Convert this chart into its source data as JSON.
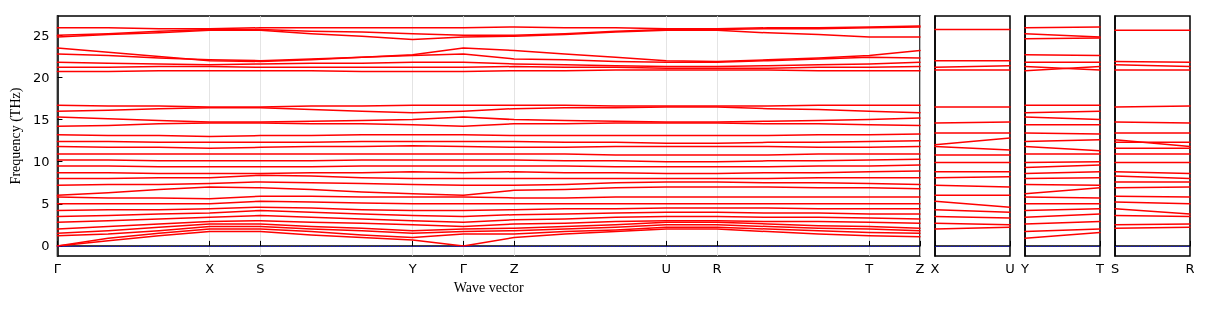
{
  "chart_data": [
    {
      "type": "line",
      "ylabel": "Frequency (THz)",
      "xlabel": "Wave vector",
      "categories": [
        "Γ",
        null,
        null,
        "X",
        "S",
        null,
        null,
        "Y",
        "Γ",
        "Z",
        null,
        null,
        "U",
        "R",
        null,
        null,
        "T",
        "Z"
      ],
      "ylim": [
        -1.2,
        27.3
      ],
      "yticks": [
        0,
        5,
        10,
        15,
        20,
        25
      ],
      "grid": "x",
      "line_style": "solid",
      "ref_lines": [
        {
          "axis": "y",
          "value": 0,
          "color": "#0000ff",
          "line_style": "dotted"
        }
      ],
      "series": [
        {
          "color": "#ff0000",
          "values": [
            0,
            0.6,
            1.2,
            1.7,
            1.7,
            1.3,
            1.0,
            0.7,
            0,
            1.0,
            1.4,
            1.7,
            2.0,
            2.0,
            1.7,
            1.4,
            1.2,
            1.1
          ]
        },
        {
          "color": "#ff0000",
          "values": [
            0,
            0.9,
            1.5,
            2.0,
            2.0,
            1.7,
            1.3,
            1.0,
            1.4,
            1.4,
            1.7,
            1.9,
            2.2,
            2.2,
            2.0,
            1.8,
            1.6,
            1.5
          ]
        },
        {
          "color": "#ff0000",
          "values": [
            1.2,
            1.4,
            1.8,
            2.3,
            2.3,
            2.0,
            1.8,
            1.5,
            1.7,
            1.8,
            2.0,
            2.2,
            2.5,
            2.5,
            2.3,
            2.1,
            2.0,
            1.8
          ]
        },
        {
          "color": "#ff0000",
          "values": [
            1.5,
            1.8,
            2.2,
            2.6,
            2.6,
            2.3,
            2.1,
            1.8,
            2.0,
            2.1,
            2.3,
            2.5,
            2.8,
            2.8,
            2.6,
            2.4,
            2.3,
            2.1
          ]
        },
        {
          "color": "#ff0000",
          "values": [
            2.0,
            2.3,
            2.6,
            2.9,
            3.0,
            2.8,
            2.7,
            2.5,
            2.3,
            2.6,
            2.7,
            2.9,
            3.0,
            3.0,
            2.9,
            2.9,
            2.8,
            2.7
          ]
        },
        {
          "color": "#ff0000",
          "values": [
            2.8,
            3.0,
            3.2,
            3.4,
            3.6,
            3.4,
            3.2,
            3.0,
            2.8,
            3.1,
            3.2,
            3.4,
            3.5,
            3.5,
            3.4,
            3.4,
            3.3,
            3.2
          ]
        },
        {
          "color": "#ff0000",
          "values": [
            3.5,
            3.6,
            3.8,
            3.9,
            4.2,
            4.0,
            3.8,
            3.6,
            3.5,
            3.7,
            3.8,
            3.9,
            4.0,
            4.0,
            3.9,
            3.9,
            3.8,
            3.8
          ]
        },
        {
          "color": "#ff0000",
          "values": [
            4.2,
            4.3,
            4.3,
            4.4,
            4.6,
            4.5,
            4.3,
            4.2,
            4.2,
            4.3,
            4.4,
            4.4,
            4.5,
            4.5,
            4.5,
            4.4,
            4.4,
            4.4
          ]
        },
        {
          "color": "#ff0000",
          "values": [
            5.0,
            5.0,
            5.0,
            5.0,
            5.3,
            5.2,
            5.1,
            5.0,
            5.0,
            5.0,
            5.0,
            5.0,
            5.0,
            5.0,
            5.0,
            5.0,
            5.0,
            5.0
          ]
        },
        {
          "color": "#ff0000",
          "values": [
            5.8,
            5.7,
            5.7,
            5.6,
            5.9,
            5.9,
            5.8,
            5.8,
            5.8,
            5.7,
            5.7,
            5.8,
            5.8,
            5.8,
            5.8,
            5.8,
            5.8,
            5.8
          ]
        },
        {
          "color": "#ff0000",
          "values": [
            6.0,
            6.3,
            6.7,
            7.0,
            6.9,
            6.7,
            6.4,
            6.2,
            6.0,
            6.6,
            6.7,
            6.9,
            7.0,
            7.0,
            7.0,
            6.9,
            6.9,
            6.8
          ]
        },
        {
          "color": "#ff0000",
          "values": [
            7.2,
            7.3,
            7.3,
            7.4,
            7.6,
            7.5,
            7.4,
            7.3,
            7.2,
            7.2,
            7.3,
            7.5,
            7.6,
            7.6,
            7.5,
            7.5,
            7.4,
            7.3
          ]
        },
        {
          "color": "#ff0000",
          "values": [
            8.0,
            8.0,
            8.1,
            8.1,
            8.4,
            8.3,
            8.1,
            8.0,
            8.0,
            8.0,
            8.0,
            8.0,
            8.0,
            8.0,
            8.0,
            8.1,
            8.1,
            8.1
          ]
        },
        {
          "color": "#ff0000",
          "values": [
            8.7,
            8.7,
            8.6,
            8.6,
            8.6,
            8.7,
            8.7,
            8.8,
            8.7,
            8.8,
            8.7,
            8.7,
            8.6,
            8.6,
            8.7,
            8.7,
            8.8,
            8.9
          ]
        },
        {
          "color": "#ff0000",
          "values": [
            9.5,
            9.5,
            9.4,
            9.4,
            9.4,
            9.4,
            9.5,
            9.5,
            9.5,
            9.5,
            9.5,
            9.4,
            9.4,
            9.4,
            9.4,
            9.5,
            9.5,
            9.6
          ]
        },
        {
          "color": "#ff0000",
          "values": [
            10.2,
            10.2,
            10.1,
            10.1,
            10.1,
            10.1,
            10.2,
            10.2,
            10.2,
            10.2,
            10.1,
            10.1,
            10.0,
            10.0,
            10.1,
            10.1,
            10.2,
            10.3
          ]
        },
        {
          "color": "#ff0000",
          "values": [
            10.9,
            10.9,
            10.9,
            10.9,
            10.9,
            10.9,
            10.9,
            10.9,
            10.9,
            10.9,
            10.9,
            10.8,
            10.8,
            10.8,
            10.8,
            10.9,
            10.9,
            10.9
          ]
        },
        {
          "color": "#ff0000",
          "values": [
            11.8,
            11.7,
            11.7,
            11.6,
            11.7,
            11.8,
            11.8,
            11.9,
            11.8,
            11.7,
            11.7,
            11.8,
            11.8,
            11.8,
            11.8,
            11.7,
            11.7,
            11.8
          ]
        },
        {
          "color": "#ff0000",
          "values": [
            12.4,
            12.4,
            12.3,
            12.3,
            12.3,
            12.3,
            12.4,
            12.4,
            12.4,
            12.4,
            12.3,
            12.3,
            12.2,
            12.2,
            12.3,
            12.3,
            12.4,
            12.5
          ]
        },
        {
          "color": "#ff0000",
          "values": [
            13.2,
            13.1,
            13.1,
            13.0,
            13.1,
            13.1,
            13.2,
            13.2,
            13.2,
            13.1,
            13.1,
            13.1,
            13.1,
            13.1,
            13.1,
            13.2,
            13.2,
            13.3
          ]
        },
        {
          "color": "#ff0000",
          "values": [
            14.2,
            14.3,
            14.5,
            14.6,
            14.6,
            14.5,
            14.5,
            14.4,
            14.2,
            14.5,
            14.5,
            14.6,
            14.6,
            14.6,
            14.5,
            14.5,
            14.4,
            14.3
          ]
        },
        {
          "color": "#ff0000",
          "values": [
            15.3,
            15.1,
            14.9,
            14.7,
            14.7,
            14.8,
            14.9,
            15.0,
            15.3,
            15.0,
            14.9,
            14.8,
            14.7,
            14.7,
            14.8,
            14.9,
            15.0,
            15.2
          ]
        },
        {
          "color": "#ff0000",
          "values": [
            16.0,
            16.1,
            16.3,
            16.4,
            16.4,
            16.2,
            16.0,
            15.8,
            16.0,
            16.3,
            16.4,
            16.4,
            16.5,
            16.5,
            16.3,
            16.2,
            16.0,
            15.8
          ]
        },
        {
          "color": "#ff0000",
          "values": [
            16.7,
            16.6,
            16.6,
            16.5,
            16.5,
            16.6,
            16.6,
            16.7,
            16.7,
            16.7,
            16.7,
            16.6,
            16.6,
            16.6,
            16.6,
            16.7,
            16.7,
            16.7
          ]
        },
        {
          "color": "#ff0000",
          "values": [
            20.7,
            20.7,
            20.8,
            20.8,
            20.8,
            20.8,
            20.7,
            20.7,
            20.7,
            20.8,
            20.8,
            20.9,
            20.9,
            20.9,
            20.9,
            20.8,
            20.8,
            20.8
          ]
        },
        {
          "color": "#ff0000",
          "values": [
            21.2,
            21.2,
            21.3,
            21.3,
            21.2,
            21.2,
            21.2,
            21.2,
            21.2,
            21.3,
            21.2,
            21.2,
            21.1,
            21.1,
            21.1,
            21.2,
            21.2,
            21.3
          ]
        },
        {
          "color": "#ff0000",
          "values": [
            21.8,
            21.7,
            21.6,
            21.5,
            21.6,
            21.7,
            21.7,
            21.8,
            21.8,
            21.6,
            21.5,
            21.4,
            21.3,
            21.3,
            21.4,
            21.5,
            21.6,
            21.8
          ]
        },
        {
          "color": "#ff0000",
          "values": [
            22.8,
            22.6,
            22.3,
            22.1,
            22.0,
            22.2,
            22.4,
            22.6,
            22.8,
            22.2,
            22.1,
            21.9,
            21.8,
            21.8,
            22.0,
            22.2,
            22.4,
            22.3
          ]
        },
        {
          "color": "#ff0000",
          "values": [
            23.5,
            23.0,
            22.5,
            22.0,
            21.9,
            22.1,
            22.4,
            22.7,
            23.5,
            23.2,
            22.8,
            22.4,
            22.0,
            21.9,
            22.1,
            22.3,
            22.6,
            23.2
          ]
        },
        {
          "color": "#ff0000",
          "values": [
            24.8,
            25.1,
            25.3,
            25.6,
            25.6,
            25.2,
            24.9,
            24.5,
            24.8,
            24.9,
            25.1,
            25.4,
            25.6,
            25.6,
            25.3,
            25.1,
            24.8,
            24.8
          ]
        },
        {
          "color": "#ff0000",
          "values": [
            25.0,
            25.2,
            25.5,
            25.7,
            25.7,
            25.5,
            25.4,
            25.2,
            25.0,
            25.0,
            25.2,
            25.5,
            25.7,
            25.7,
            25.8,
            25.8,
            25.9,
            26.0
          ]
        },
        {
          "color": "#ff0000",
          "values": [
            25.9,
            25.9,
            25.8,
            25.8,
            25.9,
            25.9,
            25.9,
            25.9,
            25.9,
            26.0,
            25.9,
            25.9,
            25.8,
            25.8,
            25.9,
            25.9,
            26.0,
            26.1
          ]
        }
      ]
    },
    {
      "type": "line",
      "categories": [
        "X",
        "U"
      ],
      "ylim": [
        -1.2,
        27.3
      ],
      "yticks": [
        0,
        5,
        10,
        15,
        20,
        25
      ],
      "tick_labels": "x",
      "line_style": "solid",
      "ref_lines": [
        {
          "axis": "y",
          "value": 0,
          "color": "#0000ff",
          "line_style": "dotted"
        }
      ],
      "series": [
        {
          "color": "#ff0000",
          "values": [
            25.7,
            25.7
          ]
        },
        {
          "color": "#ff0000",
          "values": [
            22.0,
            22.0
          ]
        },
        {
          "color": "#ff0000",
          "values": [
            21.2,
            21.4
          ]
        },
        {
          "color": "#ff0000",
          "values": [
            20.9,
            20.9
          ]
        },
        {
          "color": "#ff0000",
          "values": [
            16.5,
            16.5
          ]
        },
        {
          "color": "#ff0000",
          "values": [
            14.6,
            14.7
          ]
        },
        {
          "color": "#ff0000",
          "values": [
            13.4,
            13.4
          ]
        },
        {
          "color": "#ff0000",
          "values": [
            12.0,
            12.8
          ]
        },
        {
          "color": "#ff0000",
          "values": [
            11.8,
            11.4
          ]
        },
        {
          "color": "#ff0000",
          "values": [
            10.8,
            10.8
          ]
        },
        {
          "color": "#ff0000",
          "values": [
            9.9,
            9.9
          ]
        },
        {
          "color": "#ff0000",
          "values": [
            8.8,
            8.8
          ]
        },
        {
          "color": "#ff0000",
          "values": [
            8.1,
            8.2
          ]
        },
        {
          "color": "#ff0000",
          "values": [
            7.2,
            7.0
          ]
        },
        {
          "color": "#ff0000",
          "values": [
            6.0,
            6.0
          ]
        },
        {
          "color": "#ff0000",
          "values": [
            5.3,
            4.6
          ]
        },
        {
          "color": "#ff0000",
          "values": [
            4.3,
            4.0
          ]
        },
        {
          "color": "#ff0000",
          "values": [
            3.5,
            3.3
          ]
        },
        {
          "color": "#ff0000",
          "values": [
            2.7,
            2.5
          ]
        },
        {
          "color": "#ff0000",
          "values": [
            2.0,
            2.2
          ]
        }
      ]
    },
    {
      "type": "line",
      "categories": [
        "Y",
        "T"
      ],
      "ylim": [
        -1.2,
        27.3
      ],
      "yticks": [
        0,
        5,
        10,
        15,
        20,
        25
      ],
      "tick_labels": "x",
      "line_style": "solid",
      "ref_lines": [
        {
          "axis": "y",
          "value": 0,
          "color": "#0000ff",
          "line_style": "dotted"
        }
      ],
      "series": [
        {
          "color": "#ff0000",
          "values": [
            25.9,
            26.0
          ]
        },
        {
          "color": "#ff0000",
          "values": [
            25.2,
            24.8
          ]
        },
        {
          "color": "#ff0000",
          "values": [
            24.6,
            24.7
          ]
        },
        {
          "color": "#ff0000",
          "values": [
            22.7,
            22.6
          ]
        },
        {
          "color": "#ff0000",
          "values": [
            21.8,
            21.8
          ]
        },
        {
          "color": "#ff0000",
          "values": [
            21.3,
            20.9
          ]
        },
        {
          "color": "#ff0000",
          "values": [
            20.8,
            21.3
          ]
        },
        {
          "color": "#ff0000",
          "values": [
            16.7,
            16.7
          ]
        },
        {
          "color": "#ff0000",
          "values": [
            15.8,
            16.0
          ]
        },
        {
          "color": "#ff0000",
          "values": [
            15.3,
            15.0
          ]
        },
        {
          "color": "#ff0000",
          "values": [
            14.4,
            14.4
          ]
        },
        {
          "color": "#ff0000",
          "values": [
            13.4,
            13.3
          ]
        },
        {
          "color": "#ff0000",
          "values": [
            12.4,
            12.6
          ]
        },
        {
          "color": "#ff0000",
          "values": [
            11.8,
            11.3
          ]
        },
        {
          "color": "#ff0000",
          "values": [
            10.9,
            10.9
          ]
        },
        {
          "color": "#ff0000",
          "values": [
            9.9,
            10.0
          ]
        },
        {
          "color": "#ff0000",
          "values": [
            9.3,
            9.6
          ]
        },
        {
          "color": "#ff0000",
          "values": [
            8.6,
            8.8
          ]
        },
        {
          "color": "#ff0000",
          "values": [
            8.0,
            8.1
          ]
        },
        {
          "color": "#ff0000",
          "values": [
            7.3,
            7.2
          ]
        },
        {
          "color": "#ff0000",
          "values": [
            6.2,
            6.9
          ]
        },
        {
          "color": "#ff0000",
          "values": [
            5.8,
            5.7
          ]
        },
        {
          "color": "#ff0000",
          "values": [
            5.0,
            5.0
          ]
        },
        {
          "color": "#ff0000",
          "values": [
            4.2,
            4.4
          ]
        },
        {
          "color": "#ff0000",
          "values": [
            3.4,
            3.8
          ]
        },
        {
          "color": "#ff0000",
          "values": [
            2.6,
            2.9
          ]
        },
        {
          "color": "#ff0000",
          "values": [
            1.7,
            2.0
          ]
        },
        {
          "color": "#ff0000",
          "values": [
            0.9,
            1.6
          ]
        }
      ]
    },
    {
      "type": "line",
      "categories": [
        "S",
        "R"
      ],
      "ylim": [
        -1.2,
        27.3
      ],
      "yticks": [
        0,
        5,
        10,
        15,
        20,
        25
      ],
      "tick_labels": "x",
      "line_style": "solid",
      "ref_lines": [
        {
          "axis": "y",
          "value": 0,
          "color": "#0000ff",
          "line_style": "dotted"
        }
      ],
      "series": [
        {
          "color": "#ff0000",
          "values": [
            25.6,
            25.6
          ]
        },
        {
          "color": "#ff0000",
          "values": [
            21.9,
            21.8
          ]
        },
        {
          "color": "#ff0000",
          "values": [
            21.5,
            21.3
          ]
        },
        {
          "color": "#ff0000",
          "values": [
            20.9,
            20.9
          ]
        },
        {
          "color": "#ff0000",
          "values": [
            16.5,
            16.6
          ]
        },
        {
          "color": "#ff0000",
          "values": [
            14.7,
            14.6
          ]
        },
        {
          "color": "#ff0000",
          "values": [
            13.4,
            13.4
          ]
        },
        {
          "color": "#ff0000",
          "values": [
            12.6,
            11.8
          ]
        },
        {
          "color": "#ff0000",
          "values": [
            12.3,
            12.3
          ]
        },
        {
          "color": "#ff0000",
          "values": [
            11.6,
            11.6
          ]
        },
        {
          "color": "#ff0000",
          "values": [
            10.9,
            10.9
          ]
        },
        {
          "color": "#ff0000",
          "values": [
            9.9,
            9.9
          ]
        },
        {
          "color": "#ff0000",
          "values": [
            8.8,
            8.6
          ]
        },
        {
          "color": "#ff0000",
          "values": [
            8.3,
            8.0
          ]
        },
        {
          "color": "#ff0000",
          "values": [
            7.6,
            7.6
          ]
        },
        {
          "color": "#ff0000",
          "values": [
            6.9,
            7.0
          ]
        },
        {
          "color": "#ff0000",
          "values": [
            5.9,
            5.8
          ]
        },
        {
          "color": "#ff0000",
          "values": [
            5.2,
            5.0
          ]
        },
        {
          "color": "#ff0000",
          "values": [
            4.4,
            3.8
          ]
        },
        {
          "color": "#ff0000",
          "values": [
            3.6,
            3.5
          ]
        },
        {
          "color": "#ff0000",
          "values": [
            2.5,
            2.6
          ]
        },
        {
          "color": "#ff0000",
          "values": [
            2.1,
            2.2
          ]
        }
      ]
    }
  ]
}
